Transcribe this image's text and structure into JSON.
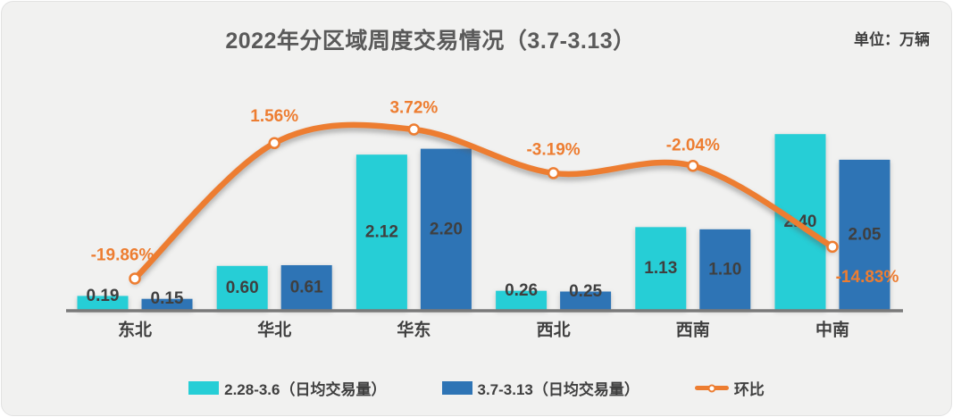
{
  "title": "2022年分区域周度交易情况（3.7-3.13）",
  "unit_label": "单位：万辆",
  "colors": {
    "series_prev": "#26CED6",
    "series_curr": "#2E74B5",
    "line": "#ED7D31",
    "label_text": "#3F3F3F",
    "title_text": "#595959",
    "axis_line": "#7A7A7A",
    "card_bg": "#F1F1F0"
  },
  "legend": {
    "items": [
      {
        "label": "2.28-3.6（日均交易量）",
        "type": "bar",
        "color_key": "series_prev"
      },
      {
        "label": "3.7-3.13（日均交易量）",
        "type": "bar",
        "color_key": "series_curr"
      },
      {
        "label": "环比",
        "type": "line",
        "color_key": "line"
      }
    ]
  },
  "chart_data": {
    "type": "bar+line",
    "title": "2022年分区域周度交易情况（3.7-3.13）",
    "unit": "万辆",
    "categories": [
      "东北",
      "华北",
      "华东",
      "西北",
      "西南",
      "中南"
    ],
    "series": [
      {
        "name": "2.28-3.6（日均交易量）",
        "type": "bar",
        "axis": "primary",
        "values": [
          0.19,
          0.6,
          2.12,
          0.26,
          1.13,
          2.4
        ],
        "labels": [
          "0.19",
          "0.60",
          "2.12",
          "0.26",
          "1.13",
          "2.40"
        ]
      },
      {
        "name": "3.7-3.13（日均交易量）",
        "type": "bar",
        "axis": "primary",
        "values": [
          0.15,
          0.61,
          2.2,
          0.25,
          1.1,
          2.05
        ],
        "labels": [
          "0.15",
          "0.61",
          "2.20",
          "0.25",
          "1.10",
          "2.05"
        ]
      },
      {
        "name": "环比",
        "type": "line",
        "axis": "secondary",
        "values": [
          -19.86,
          1.56,
          3.72,
          -3.19,
          -2.04,
          -14.83
        ],
        "labels": [
          "-19.86%",
          "1.56%",
          "3.72%",
          "-3.19%",
          "-2.04%",
          "-14.83%"
        ]
      }
    ],
    "grid": false,
    "legend_position": "bottom",
    "smooth_line": true
  }
}
